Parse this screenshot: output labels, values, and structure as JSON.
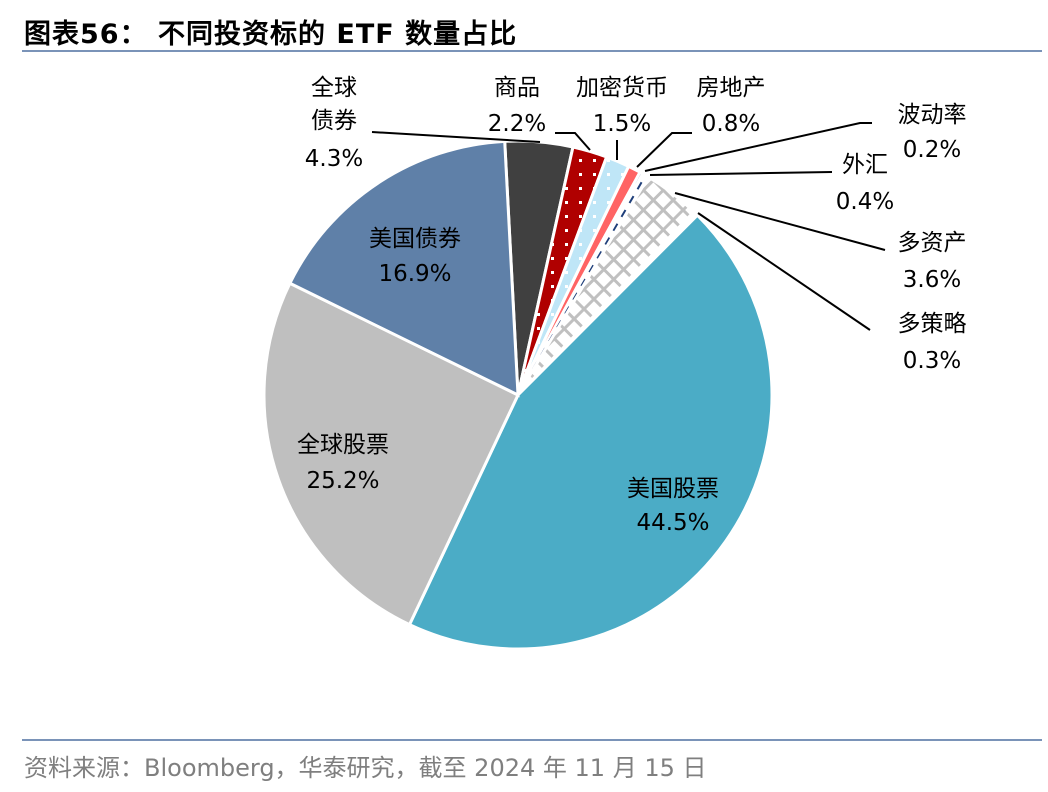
{
  "title": "图表56：  不同投资标的 ETF 数量占比",
  "source": "资料来源：Bloomberg，华泰研究，截至 2024 年 11 月 15 日",
  "chart_data": {
    "type": "pie",
    "title": "图表56：  不同投资标的 ETF 数量占比",
    "direction": "clockwise",
    "slices": [
      {
        "name": "全球债券",
        "name_lines": [
          "全球",
          "债券"
        ],
        "value": 4.3,
        "label": "4.3%",
        "color": "#404040",
        "pattern": "solid"
      },
      {
        "name": "商品",
        "value": 2.2,
        "label": "2.2%",
        "color": "#b00000",
        "pattern": "dots"
      },
      {
        "name": "加密货币",
        "value": 1.5,
        "label": "1.5%",
        "color": "#bfe6f7",
        "pattern": "dots"
      },
      {
        "name": "房地产",
        "value": 0.8,
        "label": "0.8%",
        "color": "#ff6464",
        "pattern": "solid"
      },
      {
        "name": "波动率",
        "value": 0.2,
        "label": "0.2%",
        "color": "#1f3f7a",
        "pattern": "solid"
      },
      {
        "name": "外汇",
        "value": 0.4,
        "label": "0.4%",
        "color": "#ffffff",
        "pattern": "dashed"
      },
      {
        "name": "多资产",
        "value": 3.6,
        "label": "3.6%",
        "color": "#c0c0c0",
        "pattern": "crosshatch"
      },
      {
        "name": "多策略",
        "value": 0.3,
        "label": "0.3%",
        "color": "#ffffff",
        "pattern": "solid"
      },
      {
        "name": "美国股票",
        "value": 44.5,
        "label": "44.5%",
        "color": "#4bacc6",
        "pattern": "solid"
      },
      {
        "name": "全球股票",
        "value": 25.2,
        "label": "25.2%",
        "color": "#bfbfbf",
        "pattern": "solid"
      },
      {
        "name": "美国债券",
        "value": 16.9,
        "label": "16.9%",
        "color": "#5f80a8",
        "pattern": "solid"
      }
    ]
  }
}
